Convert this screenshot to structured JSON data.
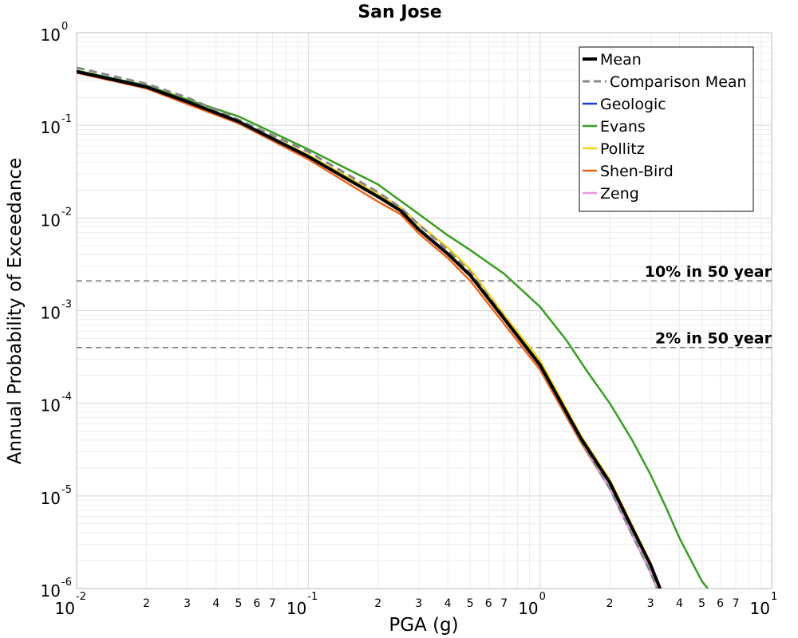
{
  "chart_data": {
    "type": "line",
    "title": "San Jose",
    "xlabel": "PGA (g)",
    "ylabel": "Annual Probability of Exceedance",
    "xscale": "log",
    "yscale": "log",
    "xlim": [
      0.01,
      10
    ],
    "ylim": [
      1e-06,
      1
    ],
    "grid": true,
    "legend_position": "top-right",
    "x_major_ticks": [
      {
        "value": 0.01,
        "base": "10",
        "exp": "-2"
      },
      {
        "value": 0.1,
        "base": "10",
        "exp": "-1"
      },
      {
        "value": 1,
        "base": "10",
        "exp": "0"
      },
      {
        "value": 10,
        "base": "10",
        "exp": "1"
      }
    ],
    "x_minor_ticks": [
      {
        "value": 0.02,
        "label": "2"
      },
      {
        "value": 0.03,
        "label": "3"
      },
      {
        "value": 0.04,
        "label": "4"
      },
      {
        "value": 0.05,
        "label": "5"
      },
      {
        "value": 0.06,
        "label": "6"
      },
      {
        "value": 0.07,
        "label": "7"
      },
      {
        "value": 0.2,
        "label": "2"
      },
      {
        "value": 0.3,
        "label": "3"
      },
      {
        "value": 0.4,
        "label": "4"
      },
      {
        "value": 0.5,
        "label": "5"
      },
      {
        "value": 0.6,
        "label": "6"
      },
      {
        "value": 0.7,
        "label": "7"
      },
      {
        "value": 2,
        "label": "2"
      },
      {
        "value": 3,
        "label": "3"
      },
      {
        "value": 4,
        "label": "4"
      },
      {
        "value": 5,
        "label": "5"
      },
      {
        "value": 6,
        "label": "6"
      },
      {
        "value": 7,
        "label": "7"
      }
    ],
    "y_major_ticks": [
      {
        "value": 1,
        "base": "10",
        "exp": "0"
      },
      {
        "value": 0.1,
        "base": "10",
        "exp": "-1"
      },
      {
        "value": 0.01,
        "base": "10",
        "exp": "-2"
      },
      {
        "value": 0.001,
        "base": "10",
        "exp": "-3"
      },
      {
        "value": 0.0001,
        "base": "10",
        "exp": "-4"
      },
      {
        "value": 1e-05,
        "base": "10",
        "exp": "-5"
      },
      {
        "value": 1e-06,
        "base": "10",
        "exp": "-6"
      }
    ],
    "annotations": [
      {
        "text": "10% in 50 year",
        "y": 0.0021
      },
      {
        "text": "2% in 50 year",
        "y": 0.0004
      }
    ],
    "series": [
      {
        "name": "Mean",
        "color": "#000000",
        "dash": "solid",
        "width": 4,
        "x": [
          0.01,
          0.02,
          0.03,
          0.05,
          0.1,
          0.2,
          0.25,
          0.3,
          0.4,
          0.5,
          0.7,
          1,
          1.5,
          2,
          2.5,
          3,
          3.3
        ],
        "y": [
          0.38,
          0.26,
          0.18,
          0.11,
          0.046,
          0.017,
          0.012,
          0.0075,
          0.0041,
          0.0024,
          0.00082,
          0.00026,
          4.2e-05,
          1.4e-05,
          4.5e-06,
          1.8e-06,
          1e-06
        ]
      },
      {
        "name": "Comparison Mean",
        "color": "#888888",
        "dash": "dashed",
        "width": 3,
        "x": [
          0.01,
          0.02,
          0.03,
          0.05,
          0.1,
          0.2,
          0.25,
          0.3,
          0.4,
          0.5,
          0.7,
          1,
          1.5,
          2,
          2.5,
          3,
          3.2
        ],
        "y": [
          0.42,
          0.28,
          0.2,
          0.115,
          0.052,
          0.019,
          0.013,
          0.0085,
          0.0045,
          0.0026,
          0.00085,
          0.00025,
          4e-05,
          1.2e-05,
          3.8e-06,
          1.5e-06,
          1e-06
        ]
      },
      {
        "name": "Geologic",
        "color": "#1a3cd9",
        "dash": "solid",
        "width": 2.5,
        "x": [
          0.01,
          0.02,
          0.03,
          0.05,
          0.1,
          0.2,
          0.25,
          0.3,
          0.4,
          0.5,
          0.7,
          1,
          1.5,
          2,
          2.5,
          3,
          3.2
        ],
        "y": [
          0.38,
          0.26,
          0.18,
          0.11,
          0.046,
          0.017,
          0.012,
          0.0075,
          0.0041,
          0.0024,
          0.0008,
          0.00025,
          4e-05,
          1.2e-05,
          3.8e-06,
          1.5e-06,
          1e-06
        ]
      },
      {
        "name": "Evans",
        "color": "#3a9e23",
        "dash": "solid",
        "width": 2.5,
        "x": [
          0.01,
          0.02,
          0.03,
          0.05,
          0.1,
          0.2,
          0.3,
          0.4,
          0.5,
          0.7,
          1,
          1.3,
          1.6,
          2,
          2.5,
          3,
          3.5,
          4,
          5,
          5.3
        ],
        "y": [
          0.39,
          0.27,
          0.19,
          0.125,
          0.055,
          0.023,
          0.011,
          0.0065,
          0.0045,
          0.0025,
          0.0011,
          0.00048,
          0.00022,
          0.0001,
          4e-05,
          1.7e-05,
          7.5e-06,
          3.5e-06,
          1.2e-06,
          1e-06
        ]
      },
      {
        "name": "Pollitz",
        "color": "#f2d21c",
        "dash": "solid",
        "width": 2.5,
        "x": [
          0.01,
          0.02,
          0.03,
          0.05,
          0.1,
          0.2,
          0.25,
          0.3,
          0.4,
          0.5,
          0.7,
          1,
          1.5,
          2,
          2.5,
          3,
          3.3
        ],
        "y": [
          0.38,
          0.26,
          0.18,
          0.11,
          0.048,
          0.018,
          0.013,
          0.0085,
          0.0048,
          0.0028,
          0.0009,
          0.00029,
          4.5e-05,
          1.5e-05,
          4.8e-06,
          1.9e-06,
          1e-06
        ]
      },
      {
        "name": "Shen-Bird",
        "color": "#f0641a",
        "dash": "solid",
        "width": 2.5,
        "x": [
          0.01,
          0.02,
          0.03,
          0.05,
          0.1,
          0.2,
          0.25,
          0.3,
          0.4,
          0.5,
          0.7,
          1,
          1.5,
          2,
          2.5,
          3,
          3.2
        ],
        "y": [
          0.37,
          0.25,
          0.17,
          0.105,
          0.043,
          0.015,
          0.011,
          0.0068,
          0.0037,
          0.0021,
          0.00072,
          0.00023,
          3.8e-05,
          1.2e-05,
          3.8e-06,
          1.5e-06,
          1e-06
        ]
      },
      {
        "name": "Zeng",
        "color": "#e899e0",
        "dash": "solid",
        "width": 2.5,
        "x": [
          0.01,
          0.02,
          0.03,
          0.05,
          0.1,
          0.2,
          0.25,
          0.3,
          0.4,
          0.5,
          0.7,
          1,
          1.5,
          2,
          2.5,
          3,
          3.2
        ],
        "y": [
          0.38,
          0.26,
          0.18,
          0.11,
          0.046,
          0.017,
          0.012,
          0.0075,
          0.0041,
          0.0024,
          0.0008,
          0.00025,
          4e-05,
          1.2e-05,
          3.8e-06,
          1.5e-06,
          1e-06
        ]
      }
    ]
  }
}
